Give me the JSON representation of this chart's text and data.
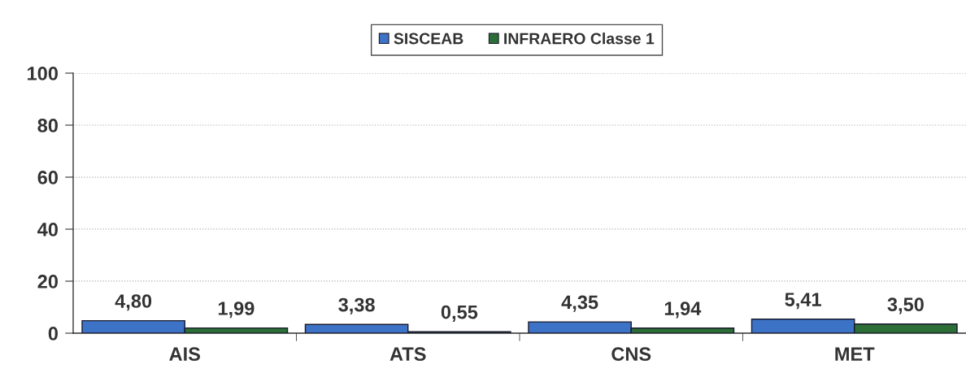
{
  "chart_data": {
    "type": "bar",
    "categories": [
      "AIS",
      "ATS",
      "CNS",
      "MET"
    ],
    "series": [
      {
        "name": "SISCEAB",
        "color": "#3d73c6",
        "values": [
          4.8,
          3.38,
          4.35,
          5.41
        ],
        "value_labels": [
          "4,80",
          "3,38",
          "4,35",
          "5,41"
        ]
      },
      {
        "name": "INFRAERO Classe 1",
        "color": "#2b6e36",
        "values": [
          1.99,
          0.55,
          1.94,
          3.5
        ],
        "value_labels": [
          "1,99",
          "0,55",
          "1,94",
          "3,50"
        ]
      }
    ],
    "ylim": [
      0,
      100
    ],
    "yticks": [
      0,
      20,
      40,
      60,
      80,
      100
    ],
    "grid": "y",
    "legend": "top"
  }
}
